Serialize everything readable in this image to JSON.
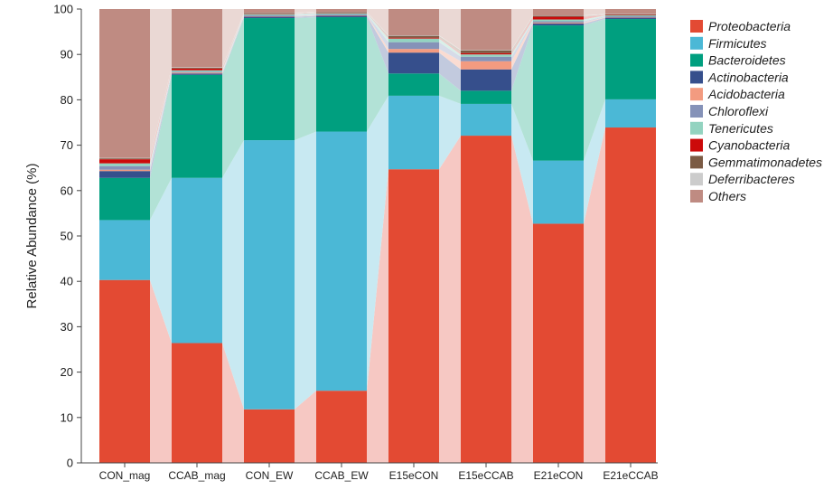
{
  "chart_data": {
    "type": "bar",
    "stacked": true,
    "ylabel": "Relative Abundance (%)",
    "ylim": [
      0,
      100
    ],
    "yticks": [
      0,
      10,
      20,
      30,
      40,
      50,
      60,
      70,
      80,
      90,
      100
    ],
    "legend_position": "right",
    "categories": [
      "CON_mag",
      "CCAB_mag",
      "CON_EW",
      "CCAB_EW",
      "E15eCON",
      "E15eCCAB",
      "E21eCON",
      "E21eCCAB"
    ],
    "series": [
      {
        "name": "Proteobacteria",
        "color": "#e34a33",
        "flow_color": "#f6c8c3",
        "values": [
          40.3,
          26.4,
          11.8,
          15.9,
          64.7,
          72.1,
          52.7,
          73.9
        ]
      },
      {
        "name": "Firmicutes",
        "color": "#4bb8d6",
        "flow_color": "#c8e9f2",
        "values": [
          13.2,
          36.4,
          59.3,
          57.1,
          16.2,
          7.0,
          13.9,
          6.2
        ]
      },
      {
        "name": "Bacteroidetes",
        "color": "#009f7f",
        "flow_color": "#b2e2d6",
        "values": [
          9.3,
          22.7,
          26.9,
          25.2,
          4.9,
          2.9,
          29.8,
          17.7
        ]
      },
      {
        "name": "Actinobacteria",
        "color": "#364f8c",
        "flow_color": "#c2cade",
        "values": [
          1.5,
          0.3,
          0.3,
          0.3,
          4.6,
          4.7,
          0.4,
          0.3
        ]
      },
      {
        "name": "Acidobacteria",
        "color": "#f39b80",
        "flow_color": "#fadcd2",
        "values": [
          0.3,
          0.2,
          0.1,
          0.1,
          0.8,
          1.8,
          0.2,
          0.1
        ]
      },
      {
        "name": "Chloroflexi",
        "color": "#8592b8",
        "flow_color": "#d6dbe8",
        "values": [
          0.8,
          0.2,
          0.2,
          0.2,
          1.5,
          1.0,
          0.3,
          0.2
        ]
      },
      {
        "name": "Tenericutes",
        "color": "#93d3c0",
        "flow_color": "#d9f0e9",
        "values": [
          0.6,
          0.3,
          0.3,
          0.3,
          0.8,
          0.5,
          0.4,
          0.2
        ]
      },
      {
        "name": "Cyanobacteria",
        "color": "#cc0a0a",
        "flow_color": "#f2c2c2",
        "values": [
          0.9,
          0.4,
          0.1,
          0.1,
          0.2,
          0.3,
          0.6,
          0.1
        ]
      },
      {
        "name": "Gemmatimonadetes",
        "color": "#7b5b44",
        "flow_color": "#dcd2ca",
        "values": [
          0.2,
          0.2,
          0.1,
          0.1,
          0.4,
          0.6,
          0.2,
          0.1
        ]
      },
      {
        "name": "Deferribacteres",
        "color": "#cccccc",
        "flow_color": "#ececec",
        "values": [
          0.1,
          0.1,
          0.1,
          0.1,
          0.1,
          0.1,
          0.1,
          0.1
        ]
      },
      {
        "name": "Others",
        "color": "#bf8b82",
        "flow_color": "#ead8d4",
        "values": [
          32.8,
          12.8,
          0.8,
          0.6,
          5.8,
          9.0,
          1.4,
          1.1
        ]
      }
    ]
  }
}
